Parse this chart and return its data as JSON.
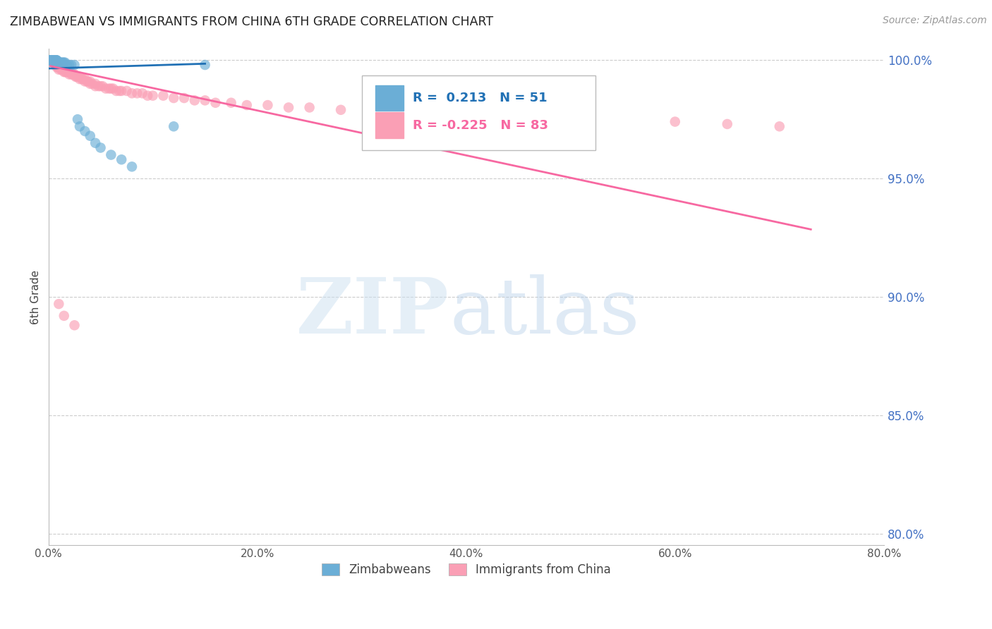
{
  "title": "ZIMBABWEAN VS IMMIGRANTS FROM CHINA 6TH GRADE CORRELATION CHART",
  "source": "Source: ZipAtlas.com",
  "ylabel": "6th Grade",
  "xlabel_ticks": [
    "0.0%",
    "20.0%",
    "40.0%",
    "60.0%",
    "80.0%"
  ],
  "ylabel_ticks": [
    "80.0%",
    "85.0%",
    "90.0%",
    "95.0%",
    "100.0%"
  ],
  "xlim": [
    0.0,
    0.8
  ],
  "ylim": [
    0.795,
    1.005
  ],
  "ytick_positions": [
    0.8,
    0.85,
    0.9,
    0.95,
    1.0
  ],
  "xtick_positions": [
    0.0,
    0.2,
    0.4,
    0.6,
    0.8
  ],
  "legend_blue_label": "Zimbabweans",
  "legend_pink_label": "Immigrants from China",
  "R_blue": 0.213,
  "N_blue": 51,
  "R_pink": -0.225,
  "N_pink": 83,
  "blue_color": "#6baed6",
  "pink_color": "#fa9fb5",
  "blue_line_color": "#2171b5",
  "pink_line_color": "#f768a1",
  "blue_scatter_x": [
    0.001,
    0.001,
    0.002,
    0.002,
    0.002,
    0.002,
    0.003,
    0.003,
    0.003,
    0.003,
    0.003,
    0.004,
    0.004,
    0.004,
    0.004,
    0.005,
    0.005,
    0.005,
    0.006,
    0.006,
    0.006,
    0.007,
    0.007,
    0.007,
    0.008,
    0.008,
    0.008,
    0.009,
    0.01,
    0.01,
    0.011,
    0.012,
    0.013,
    0.014,
    0.015,
    0.016,
    0.018,
    0.02,
    0.022,
    0.025,
    0.028,
    0.03,
    0.035,
    0.04,
    0.045,
    0.05,
    0.06,
    0.07,
    0.08,
    0.12,
    0.15
  ],
  "blue_scatter_y": [
    1.0,
    1.0,
    1.0,
    1.0,
    1.0,
    1.0,
    1.0,
    1.0,
    1.0,
    1.0,
    1.0,
    1.0,
    1.0,
    1.0,
    1.0,
    1.0,
    1.0,
    1.0,
    1.0,
    1.0,
    1.0,
    1.0,
    1.0,
    1.0,
    1.0,
    1.0,
    0.999,
    0.999,
    0.999,
    0.999,
    0.999,
    0.999,
    0.999,
    0.999,
    0.999,
    0.999,
    0.998,
    0.998,
    0.998,
    0.998,
    0.975,
    0.972,
    0.97,
    0.968,
    0.965,
    0.963,
    0.96,
    0.958,
    0.955,
    0.972,
    0.998
  ],
  "blue_line_x": [
    0.001,
    0.15
  ],
  "blue_line_y": [
    0.9965,
    0.9985
  ],
  "pink_scatter_x": [
    0.002,
    0.003,
    0.004,
    0.005,
    0.006,
    0.006,
    0.007,
    0.007,
    0.008,
    0.008,
    0.009,
    0.01,
    0.01,
    0.011,
    0.012,
    0.013,
    0.014,
    0.015,
    0.015,
    0.016,
    0.017,
    0.018,
    0.019,
    0.02,
    0.02,
    0.022,
    0.023,
    0.024,
    0.025,
    0.026,
    0.027,
    0.028,
    0.03,
    0.03,
    0.032,
    0.033,
    0.035,
    0.035,
    0.037,
    0.038,
    0.04,
    0.04,
    0.042,
    0.045,
    0.045,
    0.048,
    0.05,
    0.052,
    0.055,
    0.058,
    0.06,
    0.062,
    0.065,
    0.068,
    0.07,
    0.075,
    0.08,
    0.085,
    0.09,
    0.095,
    0.1,
    0.11,
    0.12,
    0.13,
    0.14,
    0.15,
    0.16,
    0.175,
    0.19,
    0.21,
    0.23,
    0.25,
    0.28,
    0.31,
    0.35,
    0.38,
    0.42,
    0.6,
    0.65,
    0.7,
    0.01,
    0.015,
    0.025
  ],
  "pink_scatter_y": [
    1.0,
    1.0,
    1.0,
    1.0,
    1.0,
    0.999,
    0.999,
    0.998,
    0.998,
    0.997,
    0.997,
    0.997,
    0.996,
    0.997,
    0.996,
    0.996,
    0.996,
    0.996,
    0.995,
    0.995,
    0.995,
    0.995,
    0.995,
    0.995,
    0.994,
    0.994,
    0.994,
    0.994,
    0.994,
    0.993,
    0.993,
    0.993,
    0.993,
    0.992,
    0.992,
    0.992,
    0.992,
    0.991,
    0.991,
    0.991,
    0.991,
    0.99,
    0.99,
    0.99,
    0.989,
    0.989,
    0.989,
    0.989,
    0.988,
    0.988,
    0.988,
    0.988,
    0.987,
    0.987,
    0.987,
    0.987,
    0.986,
    0.986,
    0.986,
    0.985,
    0.985,
    0.985,
    0.984,
    0.984,
    0.983,
    0.983,
    0.982,
    0.982,
    0.981,
    0.981,
    0.98,
    0.98,
    0.979,
    0.978,
    0.977,
    0.976,
    0.975,
    0.974,
    0.973,
    0.972,
    0.897,
    0.892,
    0.888
  ],
  "pink_line_x": [
    0.002,
    0.73
  ],
  "pink_line_y": [
    0.9975,
    0.9285
  ]
}
